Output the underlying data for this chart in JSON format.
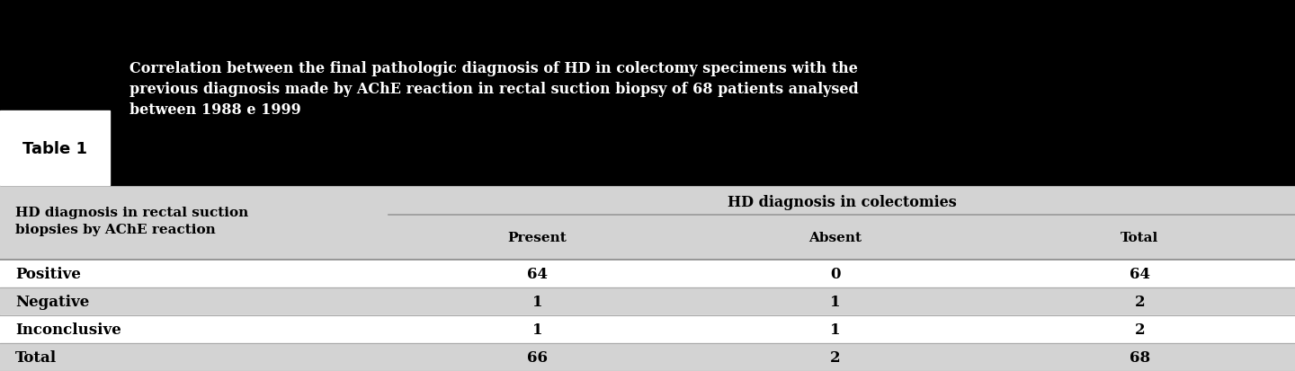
{
  "table_label": "Table 1",
  "header_title": "Correlation between the final pathologic diagnosis of HD in colectomy specimens with the\nprevious diagnosis made by AChE reaction in rectal suction biopsy of 68 patients analysed\nbetween 1988 e 1999",
  "col_header_left": "HD diagnosis in rectal suction\nbiopsies by AChE reaction",
  "col_header_group": "HD diagnosis in colectomies",
  "col_sub_headers": [
    "Present",
    "Absent",
    "Total"
  ],
  "rows": [
    [
      "Positive",
      "64",
      "0",
      "64"
    ],
    [
      "Negative",
      "1",
      "1",
      "2"
    ],
    [
      "Inconclusive",
      "1",
      "1",
      "2"
    ],
    [
      "Total",
      "66",
      "2",
      "68"
    ]
  ],
  "header_bg": "#000000",
  "header_text_color": "#ffffff",
  "body_bg": "#d3d3d3",
  "body_text_color": "#000000",
  "fig_width": 14.4,
  "fig_height": 4.14,
  "dpi": 100
}
